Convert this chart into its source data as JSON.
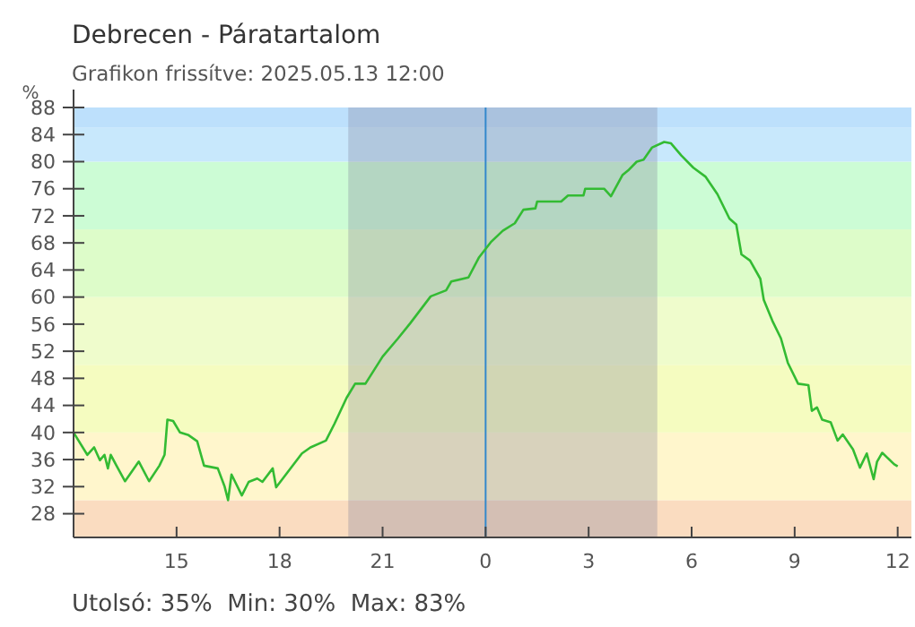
{
  "chart_data": {
    "type": "line",
    "title": "Debrecen - Páratartalom",
    "subtitle": "Grafikon frissítve: 2025.05.13 12:00",
    "ylabel": "%",
    "annotations": [
      "Utolsó: 35%  Min: 30%  Max: 83%"
    ],
    "series": [
      {
        "color": "#33bb33",
        "x": [
          "2025-05-12T12:00",
          "2025-05-12T12:24",
          "2025-05-12T12:36",
          "2025-05-12T12:46",
          "2025-05-12T12:54",
          "2025-05-12T13:00",
          "2025-05-12T13:05",
          "2025-05-12T13:15",
          "2025-05-12T13:30",
          "2025-05-12T13:54",
          "2025-05-12T14:12",
          "2025-05-12T14:30",
          "2025-05-12T14:39",
          "2025-05-12T14:44",
          "2025-05-12T14:54",
          "2025-05-12T15:06",
          "2025-05-12T15:21",
          "2025-05-12T15:36",
          "2025-05-12T15:48",
          "2025-05-12T16:12",
          "2025-05-12T16:24",
          "2025-05-12T16:30",
          "2025-05-12T16:36",
          "2025-05-12T16:54",
          "2025-05-12T17:06",
          "2025-05-12T17:21",
          "2025-05-12T17:30",
          "2025-05-12T17:48",
          "2025-05-12T17:54",
          "2025-05-12T18:39",
          "2025-05-12T18:54",
          "2025-05-12T19:21",
          "2025-05-12T19:36",
          "2025-05-12T19:57",
          "2025-05-12T20:12",
          "2025-05-12T20:30",
          "2025-05-12T21:00",
          "2025-05-12T21:27",
          "2025-05-12T21:48",
          "2025-05-12T22:24",
          "2025-05-12T22:51",
          "2025-05-12T23:00",
          "2025-05-12T23:30",
          "2025-05-12T23:48",
          "2025-05-13T00:09",
          "2025-05-13T00:30",
          "2025-05-13T00:51",
          "2025-05-13T01:06",
          "2025-05-13T01:27",
          "2025-05-13T01:30",
          "2025-05-13T02:12",
          "2025-05-13T02:24",
          "2025-05-13T02:51",
          "2025-05-13T02:54",
          "2025-05-13T03:27",
          "2025-05-13T03:39",
          "2025-05-13T03:59",
          "2025-05-13T04:09",
          "2025-05-13T04:24",
          "2025-05-13T04:36",
          "2025-05-13T04:51",
          "2025-05-13T05:12",
          "2025-05-13T05:24",
          "2025-05-13T05:42",
          "2025-05-13T06:03",
          "2025-05-13T06:24",
          "2025-05-13T06:45",
          "2025-05-13T07:06",
          "2025-05-13T07:18",
          "2025-05-13T07:27",
          "2025-05-13T07:42",
          "2025-05-13T08:00",
          "2025-05-13T08:06",
          "2025-05-13T08:21",
          "2025-05-13T08:36",
          "2025-05-13T08:48",
          "2025-05-13T09:06",
          "2025-05-13T09:24",
          "2025-05-13T09:30",
          "2025-05-13T09:39",
          "2025-05-13T09:48",
          "2025-05-13T10:03",
          "2025-05-13T10:15",
          "2025-05-13T10:24",
          "2025-05-13T10:42",
          "2025-05-13T10:54",
          "2025-05-13T11:06",
          "2025-05-13T11:18",
          "2025-05-13T11:24",
          "2025-05-13T11:33",
          "2025-05-13T11:54",
          "2025-05-13T12:00"
        ],
        "values": [
          40,
          36.7,
          37.8,
          35.9,
          36.7,
          34.7,
          36.7,
          35.1,
          32.8,
          35.7,
          32.8,
          35.1,
          36.7,
          41.9,
          41.7,
          40,
          39.6,
          38.7,
          35.1,
          34.7,
          32,
          30,
          33.8,
          30.7,
          32.7,
          33.2,
          32.7,
          34.7,
          31.9,
          36.9,
          37.8,
          38.8,
          41.3,
          45.1,
          47.2,
          47.2,
          51.2,
          53.9,
          56.1,
          60.1,
          61,
          62.3,
          62.9,
          65.8,
          68.1,
          69.8,
          70.9,
          72.9,
          73.1,
          74.1,
          74.1,
          75,
          75,
          76,
          76,
          74.9,
          78,
          78.7,
          80,
          80.3,
          82.1,
          82.9,
          82.7,
          80.9,
          79.1,
          77.8,
          75.2,
          71.6,
          70.7,
          66.3,
          65.4,
          62.7,
          59.6,
          56.5,
          53.9,
          50.3,
          47.2,
          47,
          43.2,
          43.7,
          41.9,
          41.5,
          38.8,
          39.7,
          37.5,
          34.8,
          36.9,
          33.1,
          35.7,
          37,
          35.3,
          35
        ]
      }
    ],
    "xlim": [
      "2025-05-12T12:00",
      "2025-05-13T12:24"
    ],
    "xticks": [
      {
        "value": "2025-05-12T12:00",
        "label": null
      },
      {
        "value": "2025-05-12T15:00",
        "label": "15"
      },
      {
        "value": "2025-05-12T18:00",
        "label": "18"
      },
      {
        "value": "2025-05-12T21:00",
        "label": "21"
      },
      {
        "value": "2025-05-13T00:00",
        "label": "0"
      },
      {
        "value": "2025-05-13T03:00",
        "label": "3"
      },
      {
        "value": "2025-05-13T06:00",
        "label": "6"
      },
      {
        "value": "2025-05-13T09:00",
        "label": "9"
      },
      {
        "value": "2025-05-13T12:00",
        "label": "12"
      }
    ],
    "ylim": [
      24.5,
      88
    ],
    "yticks": [
      28,
      32,
      36,
      40,
      44,
      48,
      52,
      56,
      60,
      64,
      68,
      72,
      76,
      80,
      84,
      88
    ],
    "bands": [
      {
        "axis": "y",
        "from": 24.5,
        "to": 30,
        "color": "#fadcc0"
      },
      {
        "axis": "y",
        "from": 30,
        "to": 40,
        "color": "#fff6cc"
      },
      {
        "axis": "y",
        "from": 40,
        "to": 50,
        "color": "#f5fcc0"
      },
      {
        "axis": "y",
        "from": 50,
        "to": 60,
        "color": "#effccc"
      },
      {
        "axis": "y",
        "from": 60,
        "to": 70,
        "color": "#ddfcc9"
      },
      {
        "axis": "y",
        "from": 70,
        "to": 80,
        "color": "#ccfcd5"
      },
      {
        "axis": "y",
        "from": 80,
        "to": 85,
        "color": "#c8e8fc"
      },
      {
        "axis": "y",
        "from": 85,
        "to": 88,
        "color": "#bde0fc"
      },
      {
        "axis": "x",
        "from": "2025-05-12T20:00",
        "to": "2025-05-13T05:00",
        "color": "#7f7f99"
      }
    ],
    "ref_lines": [
      {
        "axis": "x",
        "value": "2025-05-13T00:00",
        "color": "#3388cc"
      }
    ],
    "grid": false
  }
}
